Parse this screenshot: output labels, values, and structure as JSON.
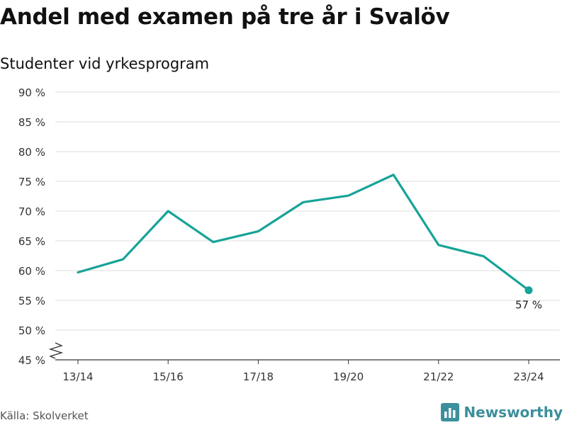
{
  "title": "Andel med examen på tre år i Svalöv",
  "subtitle": "Studenter vid yrkesprogram",
  "source": "Källa: Skolverket",
  "brand": {
    "name": "Newsworthy",
    "logo_icon": "bar-chart-logo-icon"
  },
  "colors": {
    "line": "#17a398",
    "grid": "#dddddd",
    "axis": "#333333",
    "brand": "#3c8f9c"
  },
  "chart_data": {
    "type": "line",
    "title": "Andel med examen på tre år i Svalöv",
    "subtitle": "Studenter vid yrkesprogram",
    "xlabel": "",
    "ylabel": "",
    "x": [
      "13/14",
      "14/15",
      "15/16",
      "16/17",
      "17/18",
      "18/19",
      "19/20",
      "20/21",
      "21/22",
      "22/23",
      "23/24"
    ],
    "x_tick_labels": [
      "13/14",
      "15/16",
      "17/18",
      "19/20",
      "21/22",
      "23/24"
    ],
    "series": [
      {
        "values": [
          59.7,
          61.9,
          70.0,
          64.8,
          66.6,
          71.5,
          72.6,
          76.1,
          64.3,
          62.4,
          56.7
        ]
      }
    ],
    "ylim": [
      45,
      90
    ],
    "y_ticks": [
      45,
      50,
      55,
      60,
      65,
      70,
      75,
      80,
      85,
      90
    ],
    "y_tick_labels": [
      "45 %",
      "50 %",
      "55 %",
      "60 %",
      "65 %",
      "70 %",
      "75 %",
      "80 %",
      "85 %",
      "90 %"
    ],
    "y_axis_break": true,
    "grid": true,
    "last_point_label": "57 %"
  }
}
